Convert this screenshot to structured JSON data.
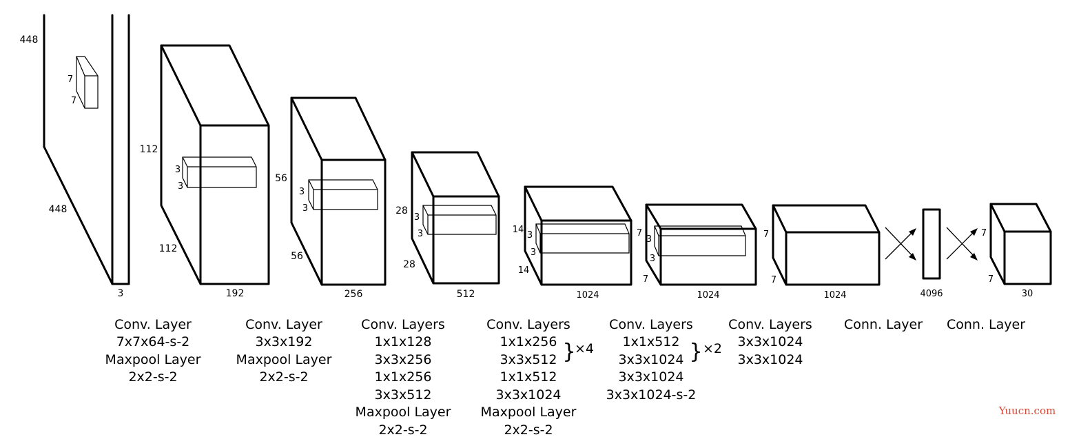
{
  "blocks": [
    {
      "depth_label": "3",
      "side_labels": [
        "448",
        "448"
      ],
      "kernel_labels": [
        "7",
        "7"
      ],
      "caption": [
        "Conv. Layer",
        "7x7x64-s-2",
        "Maxpool Layer",
        "2x2-s-2"
      ]
    },
    {
      "depth_label": "192",
      "side_labels": [
        "112",
        "112"
      ],
      "kernel_labels": [
        "3",
        "3"
      ],
      "caption": [
        "Conv. Layer",
        "3x3x192",
        "Maxpool Layer",
        "2x2-s-2"
      ]
    },
    {
      "depth_label": "256",
      "side_labels": [
        "56",
        "56"
      ],
      "kernel_labels": [
        "3",
        "3"
      ],
      "caption": [
        "Conv. Layers",
        "1x1x128",
        "3x3x256",
        "1x1x256",
        "3x3x512",
        "Maxpool Layer",
        "2x2-s-2"
      ]
    },
    {
      "depth_label": "512",
      "side_labels": [
        "28",
        "28"
      ],
      "kernel_labels": [
        "3",
        "3"
      ],
      "caption": [
        "Conv. Layers",
        "1x1x256",
        "3x3x512",
        "1x1x512",
        "3x3x1024",
        "Maxpool Layer",
        "2x2-s-2"
      ],
      "repeat": "×4"
    },
    {
      "depth_label": "1024",
      "side_labels": [
        "14",
        "14"
      ],
      "kernel_labels": [
        "3",
        "3"
      ],
      "caption": [
        "Conv. Layers",
        "1x1x512",
        "3x3x1024",
        "3x3x1024",
        "3x3x1024-s-2"
      ],
      "repeat": "×2"
    },
    {
      "depth_label": "1024",
      "side_labels": [
        "7",
        "7"
      ],
      "kernel_labels": [
        "3",
        "3"
      ],
      "caption": [
        "Conv. Layers",
        "3x3x1024",
        "3x3x1024"
      ]
    },
    {
      "depth_label": "1024",
      "side_labels": [
        "7",
        "7"
      ],
      "caption": [
        "Conn. Layer"
      ]
    },
    {
      "depth_label": "4096",
      "caption": [
        "Conn. Layer"
      ]
    },
    {
      "depth_label": "30",
      "side_labels": [
        "7",
        "7"
      ]
    }
  ],
  "brace_glyph": "}",
  "watermark": "Yuucn.com"
}
